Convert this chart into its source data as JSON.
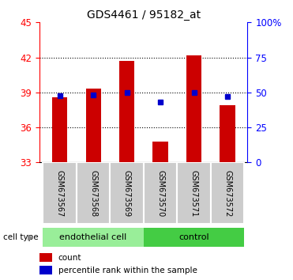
{
  "title": "GDS4461 / 95182_at",
  "samples": [
    "GSM673567",
    "GSM673568",
    "GSM673569",
    "GSM673570",
    "GSM673571",
    "GSM673572"
  ],
  "count_values": [
    38.6,
    39.3,
    41.7,
    34.8,
    42.2,
    37.9
  ],
  "percentile_values": [
    38.75,
    38.8,
    39.0,
    38.2,
    39.0,
    38.65
  ],
  "y_min": 33,
  "y_max": 45,
  "y_ticks": [
    33,
    36,
    39,
    42,
    45
  ],
  "y2_ticks": [
    0,
    25,
    50,
    75,
    100
  ],
  "y2_labels": [
    "0",
    "25",
    "50",
    "75",
    "100%"
  ],
  "bar_color": "#cc0000",
  "dot_color": "#0000cc",
  "endothelial_color": "#99ee99",
  "control_color": "#44cc44",
  "label_bg_color": "#cccccc",
  "legend_count_label": "count",
  "legend_percentile_label": "percentile rank within the sample",
  "cell_type_label": "cell type",
  "bar_bottom": 33,
  "bar_width": 0.45,
  "group_labels": [
    "endothelial cell",
    "control"
  ],
  "grid_lines": [
    36,
    39,
    42
  ],
  "bg_color": "#ffffff"
}
